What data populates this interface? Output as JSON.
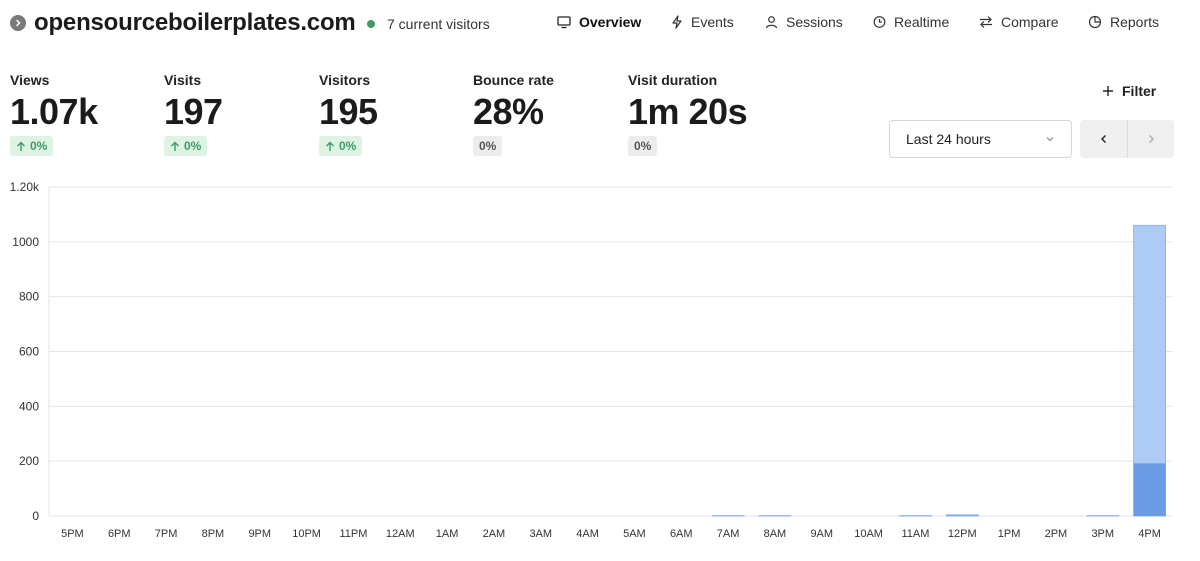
{
  "header": {
    "site_name": "opensourceboilerplates.com",
    "current_visitors": "7 current visitors"
  },
  "nav": {
    "overview": "Overview",
    "events": "Events",
    "sessions": "Sessions",
    "realtime": "Realtime",
    "compare": "Compare",
    "reports": "Reports"
  },
  "metrics": {
    "views": {
      "label": "Views",
      "value": "1.07k",
      "change": "0%"
    },
    "visits": {
      "label": "Visits",
      "value": "197",
      "change": "0%"
    },
    "visitors": {
      "label": "Visitors",
      "value": "195",
      "change": "0%"
    },
    "bounce": {
      "label": "Bounce rate",
      "value": "28%",
      "change": "0%"
    },
    "duration": {
      "label": "Visit duration",
      "value": "1m 20s",
      "change": "0%"
    }
  },
  "controls": {
    "filter": "Filter",
    "range": "Last 24 hours"
  },
  "colors": {
    "views_bar": "#aecbf5",
    "visitors_bar": "#6c9be6",
    "positive": "#3d9b64"
  },
  "chart_data": {
    "type": "bar",
    "stacked": "overlay",
    "categories": [
      "5PM",
      "6PM",
      "7PM",
      "8PM",
      "9PM",
      "10PM",
      "11PM",
      "12AM",
      "1AM",
      "2AM",
      "3AM",
      "4AM",
      "5AM",
      "6AM",
      "7AM",
      "8AM",
      "9AM",
      "10AM",
      "11AM",
      "12PM",
      "1PM",
      "2PM",
      "3PM",
      "4PM"
    ],
    "series": [
      {
        "values": [
          0,
          0,
          0,
          0,
          0,
          0,
          0,
          0,
          0,
          0,
          0,
          0,
          0,
          0,
          1,
          1,
          0,
          0,
          1,
          4,
          0,
          0,
          1,
          1060
        ]
      },
      {
        "values": [
          0,
          0,
          0,
          0,
          0,
          0,
          0,
          0,
          0,
          0,
          0,
          0,
          0,
          0,
          1,
          1,
          0,
          0,
          1,
          2,
          0,
          0,
          1,
          192
        ]
      }
    ],
    "ylim": [
      0,
      1200
    ],
    "yticks": [
      {
        "value": 0,
        "label": "0"
      },
      {
        "value": 200,
        "label": "200"
      },
      {
        "value": 400,
        "label": "400"
      },
      {
        "value": 600,
        "label": "600"
      },
      {
        "value": 800,
        "label": "800"
      },
      {
        "value": 1000,
        "label": "1000"
      },
      {
        "value": 1200,
        "label": "1.20k"
      }
    ],
    "grid": true
  }
}
